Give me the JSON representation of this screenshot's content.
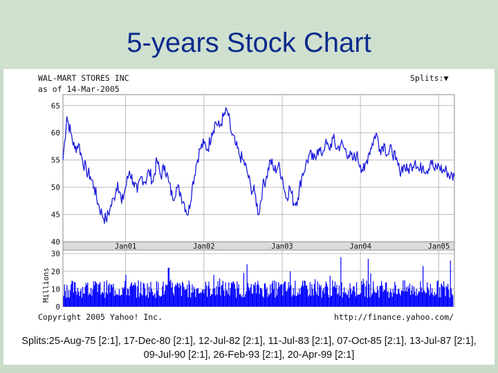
{
  "slide": {
    "title": "5-years Stock Chart",
    "splits_line1": "Splits:25-Aug-75 [2:1], 17-Dec-80 [2:1], 12-Jul-82 [2:1], 11-Jul-83 [2:1], 07-Oct-85 [2:1], 13-Jul-87 [2:1],",
    "splits_line2": "09-Jul-90 [2:1], 26-Feb-93 [2:1], 20-Apr-99 [2:1]"
  },
  "chart_header": {
    "company": "WAL-MART STORES INC",
    "as_of": "as of 14-Mar-2005",
    "splits_menu": "Splits:▼"
  },
  "chart_footer": {
    "copyright": "Copyright 2005 Yahoo! Inc.",
    "url": "http://finance.yahoo.com/"
  },
  "chart_data": {
    "type": "line",
    "series": [
      {
        "values": [
          [
            2000.2,
            55
          ],
          [
            2000.25,
            63
          ],
          [
            2000.3,
            60
          ],
          [
            2000.35,
            57
          ],
          [
            2000.4,
            58
          ],
          [
            2000.45,
            55
          ],
          [
            2000.5,
            53
          ],
          [
            2000.55,
            52
          ],
          [
            2000.6,
            50
          ],
          [
            2000.65,
            47
          ],
          [
            2000.7,
            45
          ],
          [
            2000.75,
            44
          ],
          [
            2000.8,
            46
          ],
          [
            2000.85,
            48
          ],
          [
            2000.9,
            51
          ],
          [
            2000.95,
            47
          ],
          [
            2001.0,
            50
          ],
          [
            2001.05,
            53
          ],
          [
            2001.1,
            51
          ],
          [
            2001.15,
            49
          ],
          [
            2001.2,
            52
          ],
          [
            2001.25,
            51
          ],
          [
            2001.3,
            53
          ],
          [
            2001.35,
            51
          ],
          [
            2001.4,
            55
          ],
          [
            2001.45,
            52
          ],
          [
            2001.5,
            54
          ],
          [
            2001.55,
            51
          ],
          [
            2001.6,
            48
          ],
          [
            2001.65,
            50
          ],
          [
            2001.7,
            49
          ],
          [
            2001.75,
            47
          ],
          [
            2001.8,
            45
          ],
          [
            2001.85,
            50
          ],
          [
            2001.9,
            54
          ],
          [
            2001.95,
            57
          ],
          [
            2002.0,
            58
          ],
          [
            2002.05,
            57
          ],
          [
            2002.1,
            60
          ],
          [
            2002.15,
            62
          ],
          [
            2002.2,
            61
          ],
          [
            2002.25,
            63
          ],
          [
            2002.3,
            64
          ],
          [
            2002.35,
            60
          ],
          [
            2002.4,
            58
          ],
          [
            2002.45,
            56
          ],
          [
            2002.5,
            55
          ],
          [
            2002.55,
            53
          ],
          [
            2002.6,
            50
          ],
          [
            2002.65,
            49
          ],
          [
            2002.7,
            45
          ],
          [
            2002.75,
            50
          ],
          [
            2002.8,
            52
          ],
          [
            2002.85,
            55
          ],
          [
            2002.9,
            53
          ],
          [
            2002.95,
            54
          ],
          [
            2003.0,
            52
          ],
          [
            2003.05,
            48
          ],
          [
            2003.1,
            50
          ],
          [
            2003.15,
            47
          ],
          [
            2003.2,
            48
          ],
          [
            2003.25,
            52
          ],
          [
            2003.3,
            54
          ],
          [
            2003.35,
            56
          ],
          [
            2003.4,
            55
          ],
          [
            2003.45,
            57
          ],
          [
            2003.5,
            56
          ],
          [
            2003.55,
            58
          ],
          [
            2003.6,
            57
          ],
          [
            2003.65,
            59
          ],
          [
            2003.7,
            57
          ],
          [
            2003.75,
            58
          ],
          [
            2003.8,
            57
          ],
          [
            2003.85,
            56
          ],
          [
            2003.9,
            55
          ],
          [
            2003.95,
            56
          ],
          [
            2004.0,
            54
          ],
          [
            2004.05,
            53
          ],
          [
            2004.1,
            56
          ],
          [
            2004.15,
            58
          ],
          [
            2004.2,
            60
          ],
          [
            2004.25,
            57
          ],
          [
            2004.3,
            58
          ],
          [
            2004.35,
            56
          ],
          [
            2004.4,
            57
          ],
          [
            2004.45,
            55
          ],
          [
            2004.5,
            53
          ],
          [
            2004.55,
            54
          ],
          [
            2004.6,
            53
          ],
          [
            2004.65,
            54
          ],
          [
            2004.7,
            55
          ],
          [
            2004.75,
            53
          ],
          [
            2004.8,
            54
          ],
          [
            2004.85,
            53
          ],
          [
            2004.9,
            55
          ],
          [
            2004.95,
            53
          ],
          [
            2005.0,
            54
          ],
          [
            2005.05,
            53
          ],
          [
            2005.1,
            53
          ],
          [
            2005.15,
            52
          ],
          [
            2005.2,
            52
          ]
        ]
      }
    ],
    "y_ticks": [
      "65",
      "60",
      "55",
      "50",
      "45",
      "40"
    ],
    "ylim": [
      40,
      67
    ],
    "x_ticks": [
      "Jan01",
      "Jan02",
      "Jan03",
      "Jan04",
      "Jan05"
    ],
    "xlim": [
      2000.2,
      2005.2
    ],
    "volume": {
      "ylabel": "Millions",
      "y_ticks": [
        "30",
        "20",
        "10",
        "0"
      ],
      "ylim": [
        0,
        32
      ],
      "typical_range": [
        5,
        15
      ],
      "peaks": [
        [
          2001.0,
          18
        ],
        [
          2001.55,
          22
        ],
        [
          2002.55,
          24
        ],
        [
          2003.1,
          20
        ],
        [
          2003.75,
          28
        ],
        [
          2004.1,
          27
        ],
        [
          2004.8,
          23
        ],
        [
          2005.15,
          26
        ]
      ],
      "color": "#0000ff"
    },
    "line_color": "#1a1adb",
    "grid": true
  }
}
